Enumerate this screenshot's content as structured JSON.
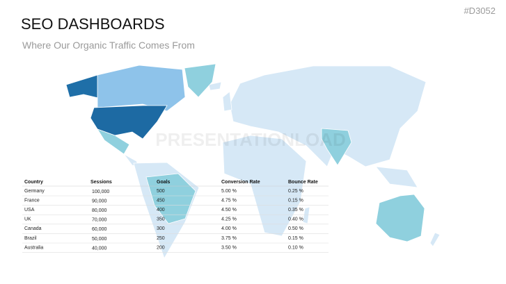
{
  "header": {
    "title": "SEO DASHBOARDS",
    "subtitle": "Where Our Organic Traffic Comes From",
    "code": "#D3052"
  },
  "watermark": "PRESENTATIONLOAD",
  "table": {
    "columns": [
      "Country",
      "Sessions",
      "Goals",
      "Conversion Rate",
      "Bounce Rate"
    ],
    "rows": [
      [
        "Germany",
        "100,000",
        "500",
        "5.00 %",
        "0.25 %"
      ],
      [
        "France",
        "90,000",
        "450",
        "4.75 %",
        "0.15 %"
      ],
      [
        "USA",
        "80,000",
        "400",
        "4.50 %",
        "0.35 %"
      ],
      [
        "UK",
        "70,000",
        "350",
        "4.25 %",
        "0.40 %"
      ],
      [
        "Canada",
        "60,000",
        "300",
        "4.00 %",
        "0.50 %"
      ],
      [
        "Brazil",
        "50,000",
        "250",
        "3.75 %",
        "0.15 %"
      ],
      [
        "Australia",
        "40,000",
        "200",
        "3.50 %",
        "0.10 %"
      ]
    ]
  }
}
